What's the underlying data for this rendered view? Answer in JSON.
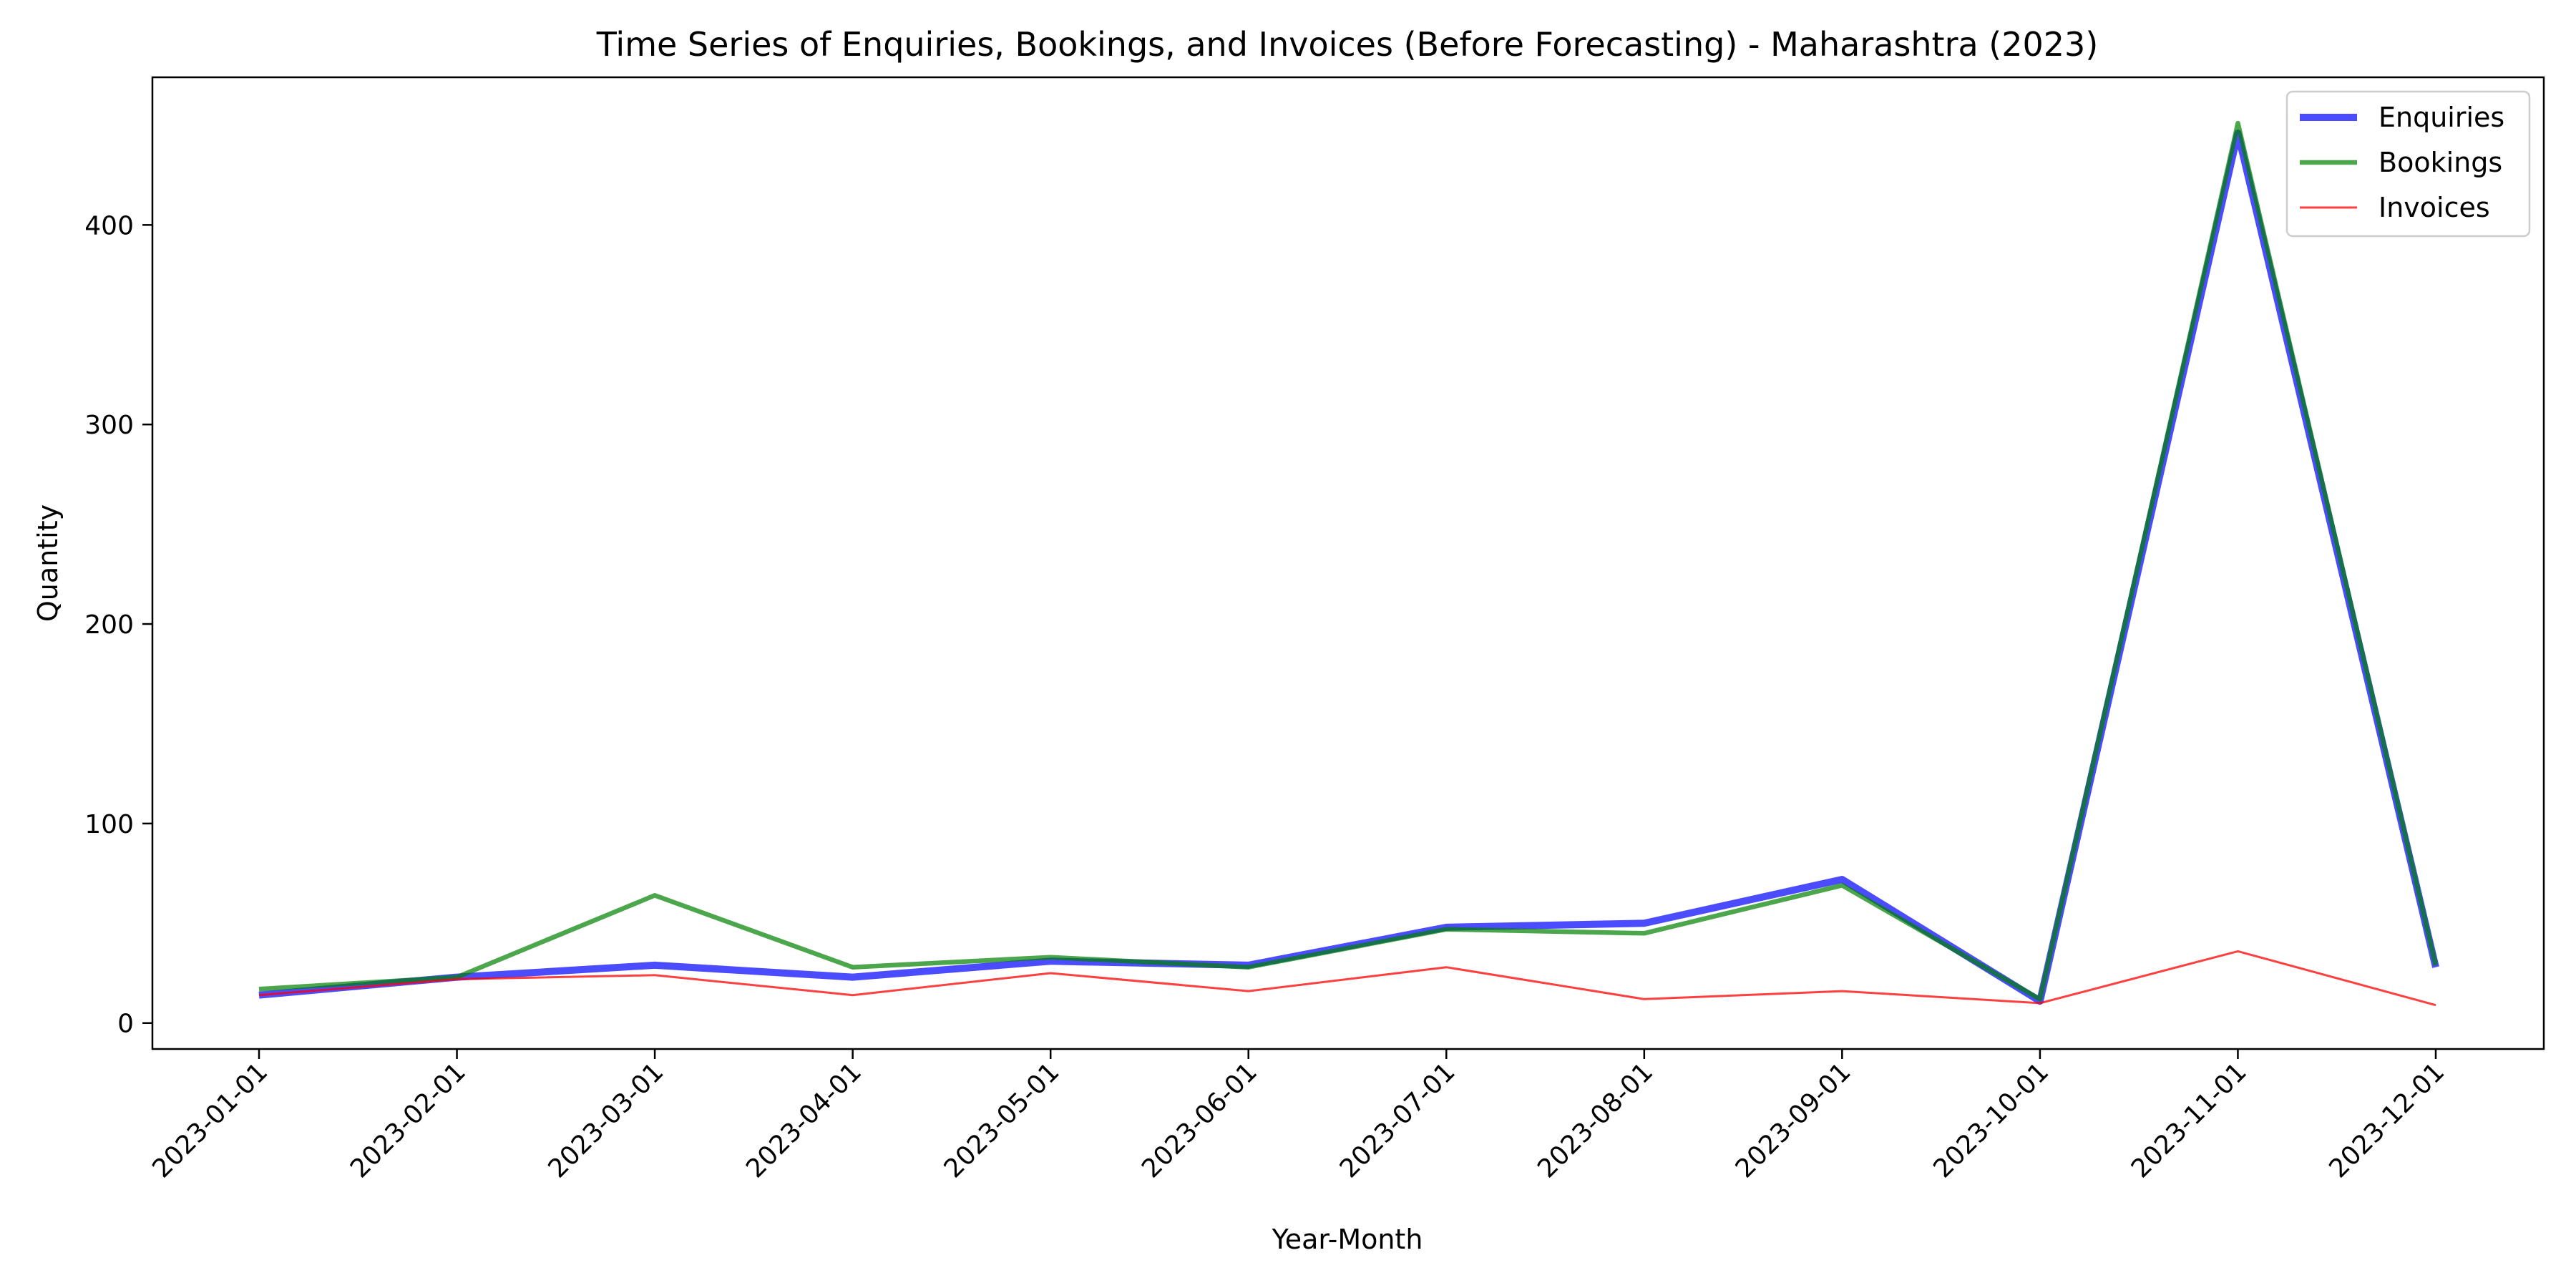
{
  "chart_data": {
    "type": "line",
    "title": "Time Series of Enquiries, Bookings, and Invoices (Before Forecasting) - Maharashtra (2023)",
    "xlabel": "Year-Month",
    "ylabel": "Quantity",
    "categories": [
      "2023-01-01",
      "2023-02-01",
      "2023-03-01",
      "2023-04-01",
      "2023-05-01",
      "2023-06-01",
      "2023-07-01",
      "2023-08-01",
      "2023-09-01",
      "2023-10-01",
      "2023-11-01",
      "2023-12-01"
    ],
    "ylim": [
      -13,
      474
    ],
    "yticks": [
      0,
      100,
      200,
      300,
      400
    ],
    "grid": false,
    "legend_position": "top-right",
    "series": [
      {
        "name": "Enquiries",
        "color": "#0000ff",
        "values": [
          14,
          23,
          29,
          23,
          31,
          29,
          48,
          50,
          72,
          11,
          446,
          28
        ]
      },
      {
        "name": "Bookings",
        "color": "#008000",
        "values": [
          17,
          23,
          64,
          28,
          33,
          28,
          47,
          45,
          69,
          12,
          451,
          29
        ]
      },
      {
        "name": "Invoices",
        "color": "#ff0000",
        "values": [
          14,
          22,
          24,
          14,
          25,
          16,
          28,
          12,
          16,
          10,
          36,
          9
        ]
      }
    ]
  }
}
